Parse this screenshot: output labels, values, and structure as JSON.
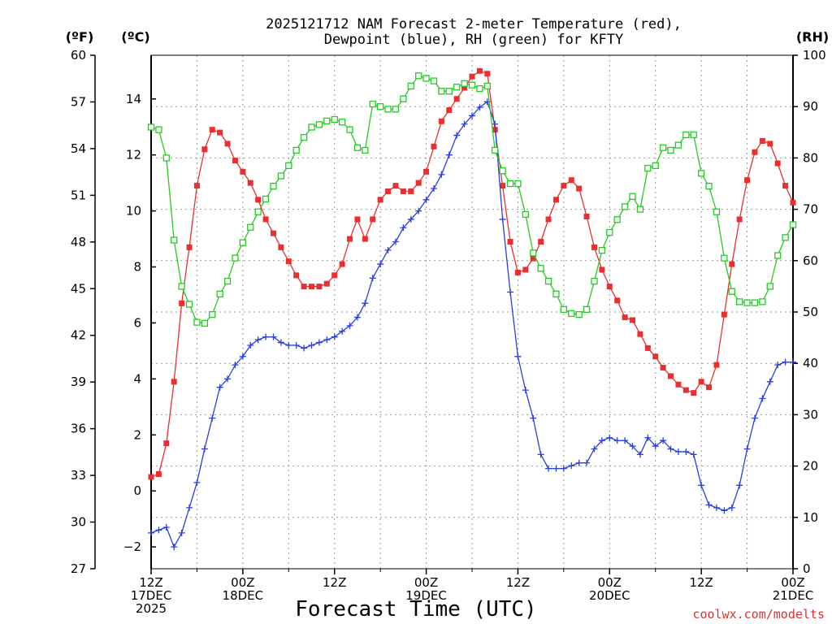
{
  "chart_data": {
    "type": "line",
    "title_lines": [
      "2025121712 NAM Forecast 2-meter Temperature (red),",
      "Dewpoint (blue), RH (green) for KFTY"
    ],
    "xlabel": "Forecast Time (UTC)",
    "credit": "coolwx.com/modelts",
    "left_outer_axis": {
      "unit": "(ºF)",
      "range": [
        27,
        60
      ],
      "ticks": [
        "27",
        "30",
        "33",
        "36",
        "39",
        "42",
        "45",
        "48",
        "51",
        "54",
        "57",
        "60"
      ]
    },
    "left_inner_axis": {
      "unit": "(ºC)",
      "range": [
        -2.78,
        15.56
      ],
      "ticks": [
        "−2",
        "0",
        "2",
        "4",
        "6",
        "8",
        "10",
        "12",
        "14"
      ]
    },
    "right_axis": {
      "unit": "(RH)",
      "range": [
        0,
        100
      ],
      "ticks": [
        "0",
        "10",
        "20",
        "30",
        "40",
        "50",
        "60",
        "70",
        "80",
        "90",
        "100"
      ]
    },
    "x_axis": {
      "range_hours": [
        0,
        84
      ],
      "ticks": [
        {
          "hour": 0,
          "lines": [
            "12Z",
            "17DEC",
            "2025"
          ]
        },
        {
          "hour": 12,
          "lines": [
            "00Z",
            "18DEC"
          ]
        },
        {
          "hour": 24,
          "lines": [
            "12Z"
          ]
        },
        {
          "hour": 36,
          "lines": [
            "00Z",
            "19DEC"
          ]
        },
        {
          "hour": 48,
          "lines": [
            "12Z"
          ]
        },
        {
          "hour": 60,
          "lines": [
            "00Z",
            "20DEC"
          ]
        },
        {
          "hour": 72,
          "lines": [
            "12Z"
          ]
        },
        {
          "hour": 84,
          "lines": [
            "00Z",
            "21DEC"
          ]
        }
      ]
    },
    "series": [
      {
        "name": "2-meter Temperature",
        "units": "degC",
        "color": "#e83030",
        "marker": "filled-square",
        "x": [
          0,
          1,
          2,
          3,
          4,
          5,
          6,
          7,
          8,
          9,
          10,
          11,
          12,
          13,
          14,
          15,
          16,
          17,
          18,
          19,
          20,
          21,
          22,
          23,
          24,
          25,
          26,
          27,
          28,
          29,
          30,
          31,
          32,
          33,
          34,
          35,
          36,
          37,
          38,
          39,
          40,
          41,
          42,
          43,
          44,
          45,
          46,
          47,
          48,
          49,
          50,
          51,
          52,
          53,
          54,
          55,
          56,
          57,
          58,
          59,
          60,
          61,
          62,
          63,
          64,
          65,
          66,
          67,
          68,
          69,
          70,
          71,
          72,
          73,
          74,
          75,
          76,
          77,
          78,
          79,
          80,
          81,
          82,
          83,
          84
        ],
        "values": [
          0.5,
          0.6,
          1.7,
          3.9,
          6.7,
          8.7,
          10.9,
          12.2,
          12.9,
          12.8,
          12.4,
          11.8,
          11.4,
          11.0,
          10.4,
          9.7,
          9.2,
          8.7,
          8.2,
          7.7,
          7.3,
          7.3,
          7.3,
          7.4,
          7.7,
          8.1,
          9.0,
          9.7,
          9.0,
          9.7,
          10.4,
          10.7,
          10.9,
          10.7,
          10.7,
          11.0,
          11.4,
          12.3,
          13.2,
          13.6,
          14.0,
          14.4,
          14.8,
          15.0,
          14.9,
          12.9,
          10.9,
          8.9,
          7.8,
          7.9,
          8.3,
          8.9,
          9.7,
          10.4,
          10.9,
          11.1,
          10.8,
          9.8,
          8.7,
          7.9,
          7.3,
          6.8,
          6.2,
          6.1,
          5.6,
          5.1,
          4.8,
          4.4,
          4.1,
          3.8,
          3.6,
          3.5,
          3.9,
          3.7,
          4.5,
          6.3,
          8.1,
          9.7,
          11.1,
          12.1,
          12.5,
          12.4,
          11.7,
          10.9,
          10.3
        ]
      },
      {
        "name": "Dewpoint",
        "units": "degC",
        "color": "#2a3fe0",
        "marker": "plus",
        "x": [
          0,
          1,
          2,
          3,
          4,
          5,
          6,
          7,
          8,
          9,
          10,
          11,
          12,
          13,
          14,
          15,
          16,
          17,
          18,
          19,
          20,
          21,
          22,
          23,
          24,
          25,
          26,
          27,
          28,
          29,
          30,
          31,
          32,
          33,
          34,
          35,
          36,
          37,
          38,
          39,
          40,
          41,
          42,
          43,
          44,
          45,
          46,
          47,
          48,
          49,
          50,
          51,
          52,
          53,
          54,
          55,
          56,
          57,
          58,
          59,
          60,
          61,
          62,
          63,
          64,
          65,
          66,
          67,
          68,
          69,
          70,
          71,
          72,
          73,
          74,
          75,
          76,
          77,
          78,
          79,
          80,
          81,
          82,
          83,
          84
        ],
        "values": [
          -1.5,
          -1.4,
          -1.3,
          -2.0,
          -1.5,
          -0.6,
          0.3,
          1.5,
          2.6,
          3.7,
          4.0,
          4.5,
          4.8,
          5.2,
          5.4,
          5.5,
          5.5,
          5.3,
          5.2,
          5.2,
          5.1,
          5.2,
          5.3,
          5.4,
          5.5,
          5.7,
          5.9,
          6.2,
          6.7,
          7.6,
          8.1,
          8.6,
          8.9,
          9.4,
          9.7,
          10.0,
          10.4,
          10.8,
          11.3,
          12.0,
          12.7,
          13.1,
          13.4,
          13.7,
          13.9,
          13.1,
          9.7,
          7.1,
          4.8,
          3.6,
          2.6,
          1.3,
          0.8,
          0.8,
          0.8,
          0.9,
          1.0,
          1.0,
          1.5,
          1.8,
          1.9,
          1.8,
          1.8,
          1.6,
          1.3,
          1.9,
          1.6,
          1.8,
          1.5,
          1.4,
          1.4,
          1.3,
          0.2,
          -0.5,
          -0.6,
          -0.7,
          -0.6,
          0.2,
          1.5,
          2.6,
          3.3,
          3.9,
          4.5,
          4.6,
          4.6
        ]
      },
      {
        "name": "RH",
        "units": "percent",
        "color": "#22cc22",
        "marker": "open-square",
        "x": [
          0,
          1,
          2,
          3,
          4,
          5,
          6,
          7,
          8,
          9,
          10,
          11,
          12,
          13,
          14,
          15,
          16,
          17,
          18,
          19,
          20,
          21,
          22,
          23,
          24,
          25,
          26,
          27,
          28,
          29,
          30,
          31,
          32,
          33,
          34,
          35,
          36,
          37,
          38,
          39,
          40,
          41,
          42,
          43,
          44,
          45,
          46,
          47,
          48,
          49,
          50,
          51,
          52,
          53,
          54,
          55,
          56,
          57,
          58,
          59,
          60,
          61,
          62,
          63,
          64,
          65,
          66,
          67,
          68,
          69,
          70,
          71,
          72,
          73,
          74,
          75,
          76,
          77,
          78,
          79,
          80,
          81,
          82,
          83,
          84
        ],
        "values": [
          86,
          85.5,
          80,
          64,
          55,
          51.5,
          48,
          47.8,
          49.5,
          53.5,
          56,
          60.5,
          63.5,
          66.5,
          69.5,
          72,
          74.5,
          76.5,
          78.5,
          81.5,
          84,
          86,
          86.5,
          87.2,
          87.5,
          87,
          85.5,
          82,
          81.5,
          90.5,
          90,
          89.5,
          89.5,
          91.5,
          94,
          96,
          95.5,
          95,
          93,
          93,
          93.8,
          94.5,
          94.2,
          93.5,
          94,
          81.5,
          77.5,
          75,
          75,
          69,
          61.5,
          58.5,
          56,
          53.5,
          50.5,
          49.7,
          49.5,
          50.5,
          56,
          62,
          65.5,
          68,
          70.5,
          72.5,
          70,
          78,
          78.5,
          82,
          81.5,
          82.5,
          84.5,
          84.5,
          77,
          74.5,
          69.5,
          60.5,
          54,
          52,
          51.8,
          51.8,
          52,
          55,
          61,
          64.5,
          67
        ]
      }
    ]
  }
}
